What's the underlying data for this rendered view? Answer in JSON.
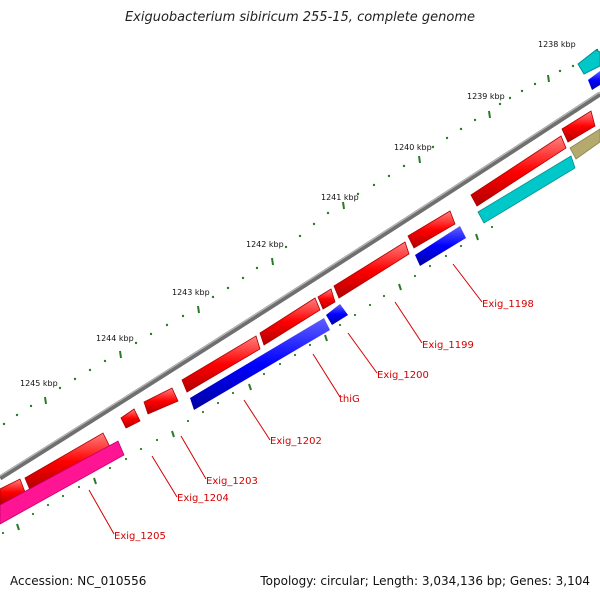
{
  "title": "Exiguobacterium sibiricum 255-15, complete genome",
  "footer": {
    "accession": "Accession: NC_010556",
    "topology": "Topology: circular; Length: 3,034,136 bp; Genes: 3,104"
  },
  "scale_labels": [
    "1238 kbp",
    "1239 kbp",
    "1240 kbp",
    "1241 kbp",
    "1242 kbp",
    "1243 kbp",
    "1244 kbp",
    "1245 kbp"
  ],
  "gene_labels": [
    "Exig_1198",
    "Exig_1199",
    "Exig_1200",
    "thiG",
    "Exig_1202",
    "Exig_1203",
    "Exig_1204",
    "Exig_1205"
  ],
  "colors": {
    "forward_gene": "#ff0000",
    "reverse_gene": "#0000ff",
    "cyan_gene": "#00c8c8",
    "magenta_gene": "#ff1493",
    "olive_gene": "#b4aa6e",
    "backbone": "#777777",
    "tick": "#2a7a2a",
    "label": "#d40000"
  }
}
